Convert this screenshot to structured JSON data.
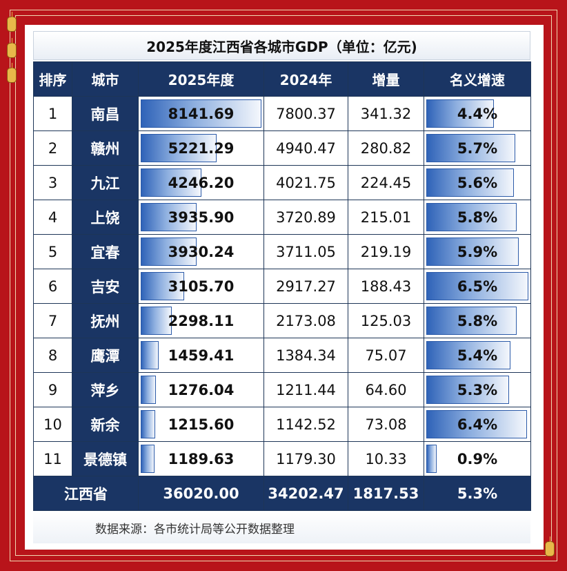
{
  "chart_data": {
    "type": "table",
    "title": "2025年度江西省各城市GDP（单位：亿元)",
    "columns": [
      "排序",
      "城市",
      "2025年度",
      "2024年",
      "增量",
      "名义增速"
    ],
    "rows": [
      {
        "rank": "1",
        "city": "南昌",
        "gdp2025": "8141.69",
        "gdp2025_value": 8141.69,
        "gdp2024": "7800.37",
        "increase": "341.32",
        "growth": "4.4%",
        "growth_value": 4.4
      },
      {
        "rank": "2",
        "city": "赣州",
        "gdp2025": "5221.29",
        "gdp2025_value": 5221.29,
        "gdp2024": "4940.47",
        "increase": "280.82",
        "growth": "5.7%",
        "growth_value": 5.7
      },
      {
        "rank": "3",
        "city": "九江",
        "gdp2025": "4246.20",
        "gdp2025_value": 4246.2,
        "gdp2024": "4021.75",
        "increase": "224.45",
        "growth": "5.6%",
        "growth_value": 5.6
      },
      {
        "rank": "4",
        "city": "上饶",
        "gdp2025": "3935.90",
        "gdp2025_value": 3935.9,
        "gdp2024": "3720.89",
        "increase": "215.01",
        "growth": "5.8%",
        "growth_value": 5.8
      },
      {
        "rank": "5",
        "city": "宜春",
        "gdp2025": "3930.24",
        "gdp2025_value": 3930.24,
        "gdp2024": "3711.05",
        "increase": "219.19",
        "growth": "5.9%",
        "growth_value": 5.9
      },
      {
        "rank": "6",
        "city": "吉安",
        "gdp2025": "3105.70",
        "gdp2025_value": 3105.7,
        "gdp2024": "2917.27",
        "increase": "188.43",
        "growth": "6.5%",
        "growth_value": 6.5
      },
      {
        "rank": "7",
        "city": "抚州",
        "gdp2025": "2298.11",
        "gdp2025_value": 2298.11,
        "gdp2024": "2173.08",
        "increase": "125.03",
        "growth": "5.8%",
        "growth_value": 5.8
      },
      {
        "rank": "8",
        "city": "鹰潭",
        "gdp2025": "1459.41",
        "gdp2025_value": 1459.41,
        "gdp2024": "1384.34",
        "increase": "75.07",
        "growth": "5.4%",
        "growth_value": 5.4
      },
      {
        "rank": "9",
        "city": "萍乡",
        "gdp2025": "1276.04",
        "gdp2025_value": 1276.04,
        "gdp2024": "1211.44",
        "increase": "64.60",
        "growth": "5.3%",
        "growth_value": 5.3
      },
      {
        "rank": "10",
        "city": "新余",
        "gdp2025": "1215.60",
        "gdp2025_value": 1215.6,
        "gdp2024": "1142.52",
        "increase": "73.08",
        "growth": "6.4%",
        "growth_value": 6.4
      },
      {
        "rank": "11",
        "city": "景德镇",
        "gdp2025": "1189.63",
        "gdp2025_value": 1189.63,
        "gdp2024": "1179.30",
        "increase": "10.33",
        "growth": "0.9%",
        "growth_value": 0.9
      }
    ],
    "total": {
      "label": "江西省",
      "gdp2025": "36020.00",
      "gdp2024": "34202.47",
      "increase": "1817.53",
      "growth": "5.3%"
    },
    "source": "数据来源：各市统计局等公开数据整理"
  },
  "colors": {
    "background": "#b8141a",
    "header": "#1a3564",
    "bar": "#2f63b8"
  }
}
